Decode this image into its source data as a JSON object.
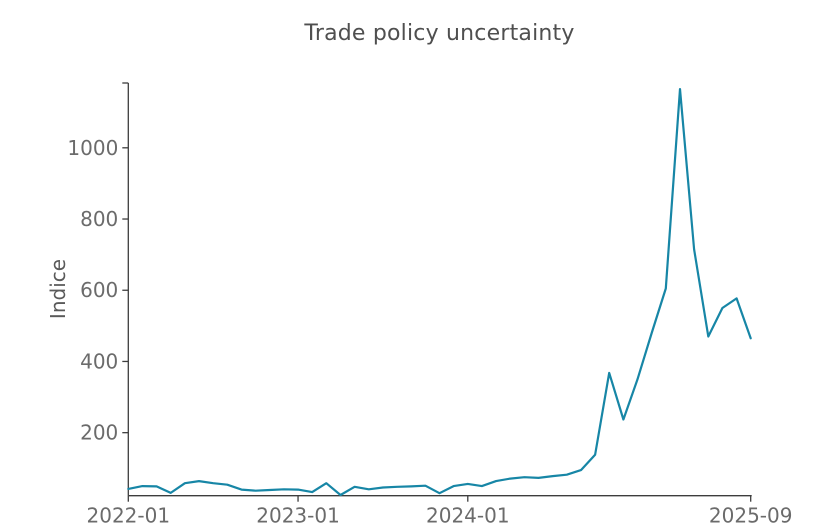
{
  "chart_data": {
    "type": "line",
    "title": "Trade policy uncertainty",
    "xlabel": "",
    "ylabel": "Indice",
    "x": [
      "2022-01",
      "2022-02",
      "2022-03",
      "2022-04",
      "2022-05",
      "2022-06",
      "2022-07",
      "2022-08",
      "2022-09",
      "2022-10",
      "2022-11",
      "2022-12",
      "2023-01",
      "2023-02",
      "2023-03",
      "2023-04",
      "2023-05",
      "2023-06",
      "2023-07",
      "2023-08",
      "2023-09",
      "2023-10",
      "2023-11",
      "2023-12",
      "2024-01",
      "2024-02",
      "2024-03",
      "2024-04",
      "2024-05",
      "2024-06",
      "2024-07",
      "2024-08",
      "2024-09",
      "2024-10",
      "2024-11",
      "2024-12",
      "2025-01",
      "2025-02",
      "2025-03",
      "2025-04",
      "2025-05",
      "2025-06",
      "2025-07",
      "2025-08",
      "2025-09"
    ],
    "values": [
      42,
      50,
      49,
      31,
      58,
      64,
      58,
      54,
      40,
      37,
      39,
      41,
      40,
      33,
      58,
      25,
      48,
      41,
      46,
      48,
      49,
      51,
      30,
      50,
      56,
      50,
      64,
      71,
      75,
      73,
      78,
      82,
      95,
      138,
      368,
      237,
      350,
      480,
      605,
      1165,
      715,
      470,
      550,
      577,
      465
    ],
    "x_tick_labels": [
      "2022-01",
      "2023-01",
      "2024-01",
      "2025-09"
    ],
    "y_tick_labels": [
      200,
      400,
      600,
      800,
      1000
    ],
    "ylim": [
      23,
      1182
    ],
    "grid": false,
    "legend": null,
    "line_color": "#1786a6",
    "line_width": 2.2
  },
  "colors": {
    "background": "#ffffff",
    "line": "#1786a6",
    "axis": "#3d3d3d",
    "tick_label": "#6b6b6b",
    "title": "#4f4f4f",
    "axis_label": "#5a5a5a"
  }
}
